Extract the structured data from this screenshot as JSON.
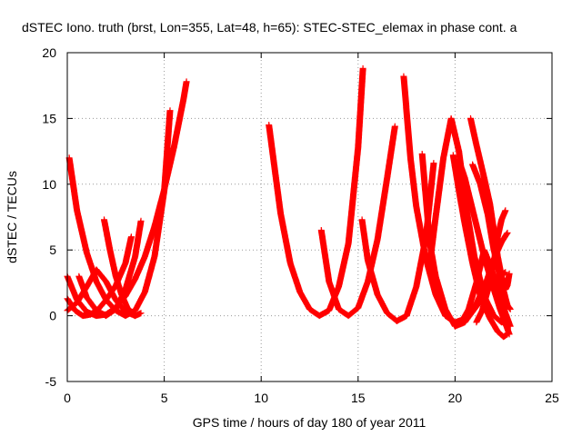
{
  "chart_data": {
    "type": "scatter",
    "title": "dSTEC Iono. truth (brst, Lon=355, Lat=48, h=65): STEC-STEC_elemax in phase cont. a",
    "xlabel": "GPS time / hours of day 180 of year 2011",
    "ylabel": "dSTEC  / TECUs",
    "xlim": [
      0,
      25
    ],
    "ylim": [
      -5,
      20
    ],
    "xticks": [
      0,
      5,
      10,
      15,
      20,
      25
    ],
    "yticks": [
      -5,
      0,
      5,
      10,
      15,
      20
    ],
    "grid": true,
    "marker": "+",
    "color": "#ff0000",
    "series": [
      {
        "x": [
          0.1,
          0.5,
          1.0,
          1.5,
          2.0,
          2.5,
          3.0,
          3.5,
          4.0,
          4.5,
          5.0,
          5.3
        ],
        "y": [
          12.0,
          8.0,
          4.8,
          2.6,
          1.2,
          0.4,
          0.0,
          0.4,
          1.8,
          4.5,
          9.5,
          15.6
        ]
      },
      {
        "x": [
          0.0,
          0.5,
          1.0,
          1.5,
          2.0,
          2.5,
          3.0,
          3.5,
          4.0,
          4.5,
          5.0,
          5.5,
          6.0,
          6.15
        ],
        "y": [
          3.0,
          1.2,
          0.3,
          0.0,
          0.1,
          0.6,
          1.5,
          2.8,
          4.5,
          6.8,
          9.6,
          12.8,
          16.5,
          17.8
        ]
      },
      {
        "x": [
          0.0,
          0.4,
          0.8,
          1.2,
          1.6,
          2.0,
          2.5,
          3.0,
          3.3
        ],
        "y": [
          1.3,
          0.4,
          0.0,
          0.1,
          0.5,
          1.2,
          2.3,
          4.0,
          6.0
        ]
      },
      {
        "x": [
          0.0,
          0.5,
          1.0,
          1.5,
          2.0,
          2.5,
          3.0,
          3.5,
          3.8
        ],
        "y": [
          0.4,
          1.0,
          2.2,
          3.5,
          2.6,
          1.2,
          0.3,
          0.0,
          0.2
        ]
      },
      {
        "x": [
          0.6,
          1.0,
          1.5,
          2.0,
          2.5,
          3.0,
          3.5,
          3.8
        ],
        "y": [
          3.0,
          1.4,
          0.4,
          0.0,
          0.5,
          2.0,
          4.5,
          7.2
        ]
      },
      {
        "x": [
          1.9,
          2.2,
          2.5,
          2.8,
          3.1,
          3.5
        ],
        "y": [
          7.3,
          5.0,
          3.0,
          1.6,
          0.6,
          0.0
        ]
      },
      {
        "x": [
          10.4,
          11.0,
          11.5,
          12.0,
          12.5,
          13.0,
          13.5,
          14.0,
          14.5,
          15.0,
          15.25
        ],
        "y": [
          14.5,
          7.8,
          4.0,
          1.8,
          0.5,
          0.0,
          0.4,
          2.2,
          5.5,
          12.8,
          18.8
        ]
      },
      {
        "x": [
          13.1,
          13.5,
          14.0,
          14.5,
          15.0,
          15.5,
          16.0,
          16.5,
          16.9
        ],
        "y": [
          6.5,
          2.6,
          0.5,
          0.0,
          0.6,
          2.6,
          5.8,
          10.5,
          14.4
        ]
      },
      {
        "x": [
          15.2,
          15.5,
          16.0,
          16.5,
          17.0,
          17.5,
          18.0,
          18.5,
          18.9
        ],
        "y": [
          7.3,
          4.2,
          1.6,
          0.2,
          -0.4,
          0.0,
          2.2,
          6.0,
          11.6
        ]
      },
      {
        "x": [
          17.35,
          17.7,
          18.0,
          18.5,
          19.0,
          19.5,
          20.0,
          20.6,
          21.0,
          21.6,
          22.0,
          22.4,
          22.7
        ],
        "y": [
          18.2,
          12.0,
          8.3,
          4.3,
          1.6,
          0.0,
          -0.5,
          -0.2,
          0.6,
          2.5,
          4.3,
          5.6,
          6.3
        ]
      },
      {
        "x": [
          18.3,
          18.7,
          19.0,
          19.5,
          20.0,
          20.5,
          21.0,
          21.5,
          22.0,
          22.3,
          22.6
        ],
        "y": [
          12.3,
          5.5,
          3.0,
          0.5,
          -0.8,
          -0.5,
          0.5,
          1.5,
          2.6,
          3.0,
          3.3
        ]
      },
      {
        "x": [
          18.7,
          19.0,
          19.4,
          19.8,
          20.2,
          20.6,
          21.0,
          21.5,
          22.0,
          22.4,
          22.7
        ],
        "y": [
          4.0,
          7.5,
          12.0,
          15.0,
          12.5,
          8.0,
          4.5,
          1.5,
          0.0,
          -0.5,
          -0.4
        ]
      },
      {
        "x": [
          19.9,
          20.2,
          20.5,
          20.9,
          21.3,
          21.8,
          22.2,
          22.5,
          22.7
        ],
        "y": [
          12.2,
          9.5,
          7.0,
          4.0,
          1.5,
          -0.2,
          -1.2,
          -1.6,
          -1.4
        ]
      },
      {
        "x": [
          20.2,
          20.5,
          21.0,
          21.5,
          22.0,
          22.3,
          22.6,
          22.8
        ],
        "y": [
          11.8,
          10.5,
          7.5,
          4.5,
          2.0,
          0.6,
          -0.6,
          -1.4
        ]
      },
      {
        "x": [
          20.4,
          20.7,
          21.1,
          21.5,
          21.9,
          22.3,
          22.6,
          22.85
        ],
        "y": [
          -0.3,
          0.5,
          2.5,
          5.0,
          3.5,
          1.6,
          0.2,
          -0.8
        ]
      },
      {
        "x": [
          20.8,
          21.1,
          21.5,
          21.8,
          22.0,
          22.2,
          22.4,
          22.6,
          22.7,
          22.8
        ],
        "y": [
          15.0,
          13.0,
          10.5,
          8.5,
          6.5,
          4.5,
          3.0,
          2.0,
          2.3,
          3.2
        ]
      },
      {
        "x": [
          20.9,
          21.3,
          21.7,
          22.0,
          22.4,
          22.7,
          22.85
        ],
        "y": [
          11.5,
          10.0,
          7.6,
          5.0,
          2.5,
          0.8,
          0.5
        ]
      },
      {
        "x": [
          21.1,
          21.4,
          21.7,
          22.0,
          22.2,
          22.4,
          22.6
        ],
        "y": [
          -0.5,
          0.4,
          2.0,
          4.0,
          6.0,
          7.3,
          8.0
        ]
      }
    ]
  }
}
